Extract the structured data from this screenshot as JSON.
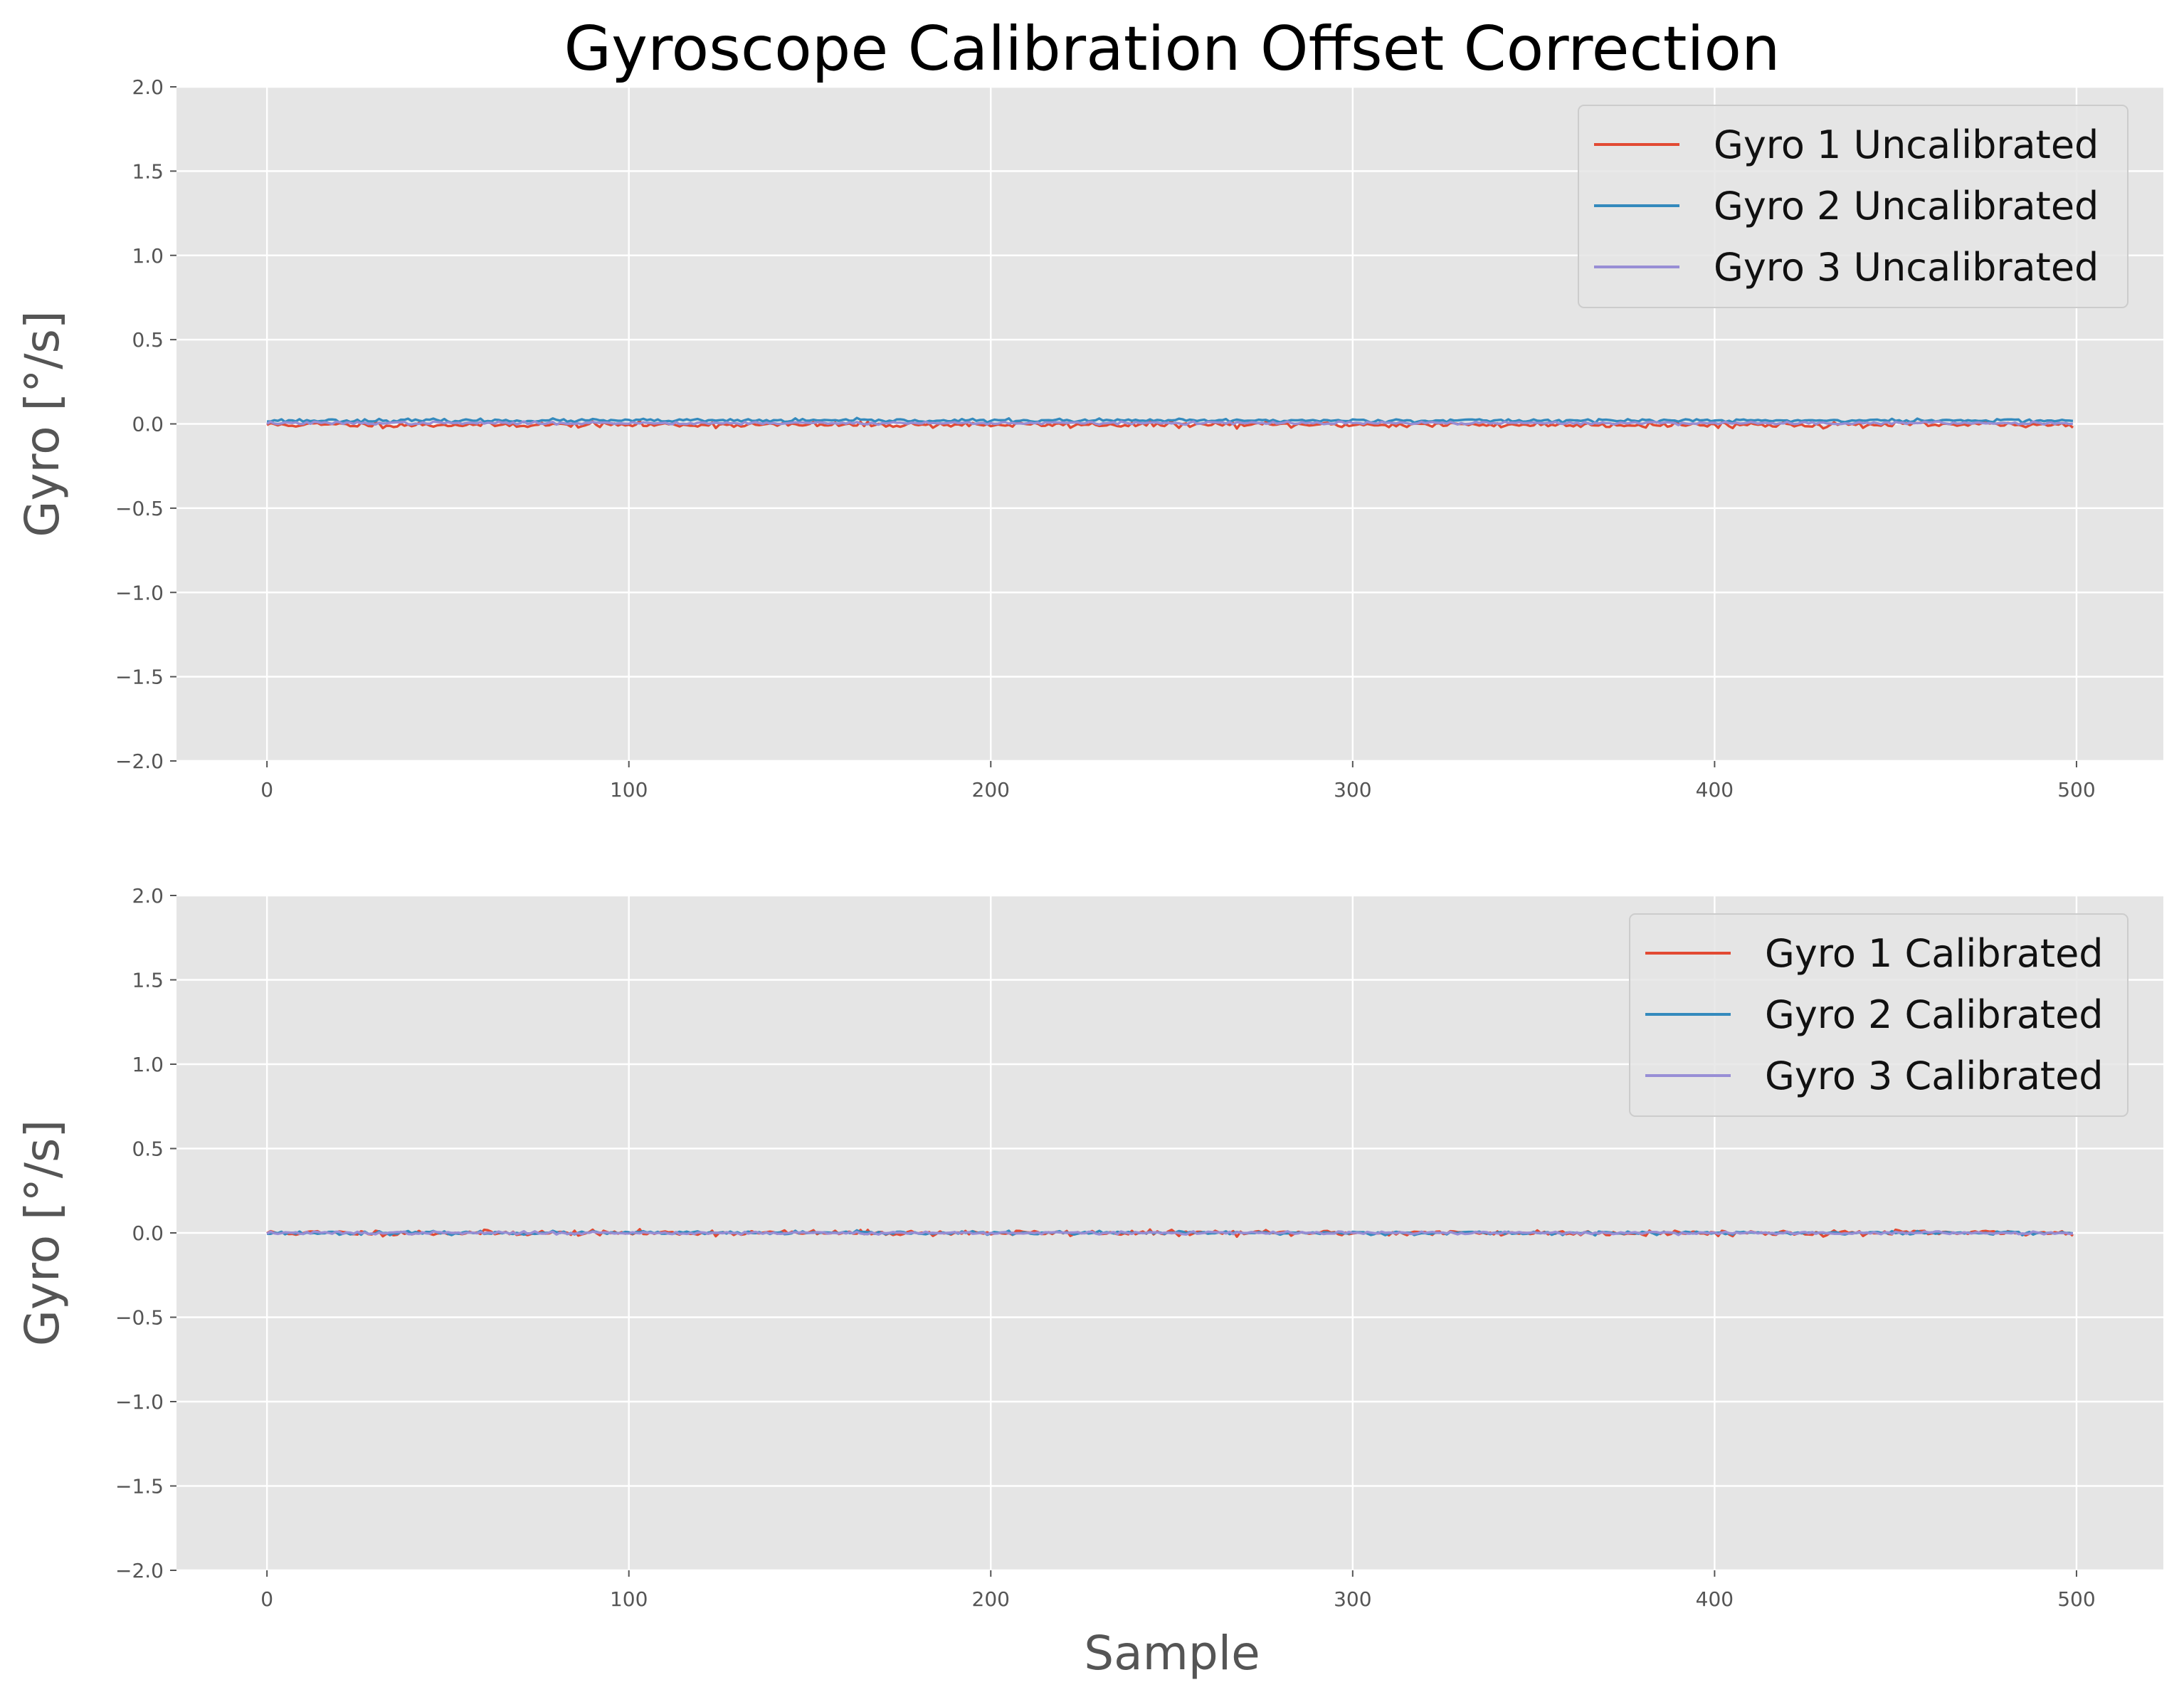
{
  "chart_data": {
    "title": "Gyroscope Calibration Offset Correction",
    "type": "line",
    "xlabel": "Sample",
    "colors": {
      "axes_bg": "#e5e5e5",
      "grid": "#ffffff",
      "series": [
        "#e24a33",
        "#348abd",
        "#988ed5"
      ]
    },
    "subplots": [
      {
        "ylabel": "Gyro [°/s]",
        "xlabel": "",
        "xlim": [
          -25,
          524
        ],
        "ylim": [
          -2.0,
          2.0
        ],
        "xticks": [
          0,
          100,
          200,
          300,
          400,
          500
        ],
        "yticks": [
          -2.0,
          -1.5,
          -1.0,
          -0.5,
          0.0,
          0.5,
          1.0,
          1.5,
          2.0
        ],
        "ytick_labels": [
          "−2.0",
          "−1.5",
          "−1.0",
          "−0.5",
          "0.0",
          "0.5",
          "1.0",
          "1.5",
          "2.0"
        ],
        "grid": true,
        "legend_position": "top-right",
        "series": [
          {
            "name": "Gyro 1 Uncalibrated",
            "offset": -0.005,
            "noise": 0.008,
            "seed": 11
          },
          {
            "name": "Gyro 2 Uncalibrated",
            "offset": 0.02,
            "noise": 0.005,
            "seed": 23
          },
          {
            "name": "Gyro 3 Uncalibrated",
            "offset": 0.005,
            "noise": 0.004,
            "seed": 37
          }
        ]
      },
      {
        "ylabel": "Gyro [°/s]",
        "xlabel": "Sample",
        "xlim": [
          -25,
          524
        ],
        "ylim": [
          -2.0,
          2.0
        ],
        "xticks": [
          0,
          100,
          200,
          300,
          400,
          500
        ],
        "yticks": [
          -2.0,
          -1.5,
          -1.0,
          -0.5,
          0.0,
          0.5,
          1.0,
          1.5,
          2.0
        ],
        "ytick_labels": [
          "−2.0",
          "−1.5",
          "−1.0",
          "−0.5",
          "0.0",
          "0.5",
          "1.0",
          "1.5",
          "2.0"
        ],
        "grid": true,
        "legend_position": "top-right",
        "series": [
          {
            "name": "Gyro 1 Calibrated",
            "offset": 0.0,
            "noise": 0.008,
            "seed": 11
          },
          {
            "name": "Gyro 2 Calibrated",
            "offset": 0.0,
            "noise": 0.005,
            "seed": 23
          },
          {
            "name": "Gyro 3 Calibrated",
            "offset": 0.0,
            "noise": 0.004,
            "seed": 37
          }
        ]
      }
    ],
    "x_range": [
      0,
      499
    ]
  }
}
